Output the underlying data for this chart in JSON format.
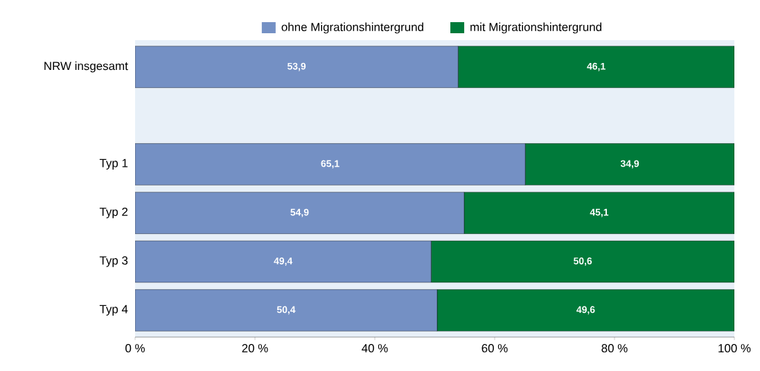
{
  "chart_data": {
    "type": "bar",
    "orientation": "horizontal",
    "stacked": true,
    "categories": [
      "NRW insgesamt",
      null,
      "Typ 1",
      "Typ 2",
      "Typ 3",
      "Typ 4"
    ],
    "series": [
      {
        "name": "ohne Migrationshintergrund",
        "color": "#7490c4",
        "values": [
          53.9,
          null,
          65.1,
          54.9,
          49.4,
          50.4
        ],
        "value_labels": [
          "53,9",
          null,
          "65,1",
          "54,9",
          "49,4",
          "50,4"
        ]
      },
      {
        "name": "mit Migrationshintergrund",
        "color": "#007a3a",
        "values": [
          46.1,
          null,
          34.9,
          45.1,
          50.6,
          49.6
        ],
        "value_labels": [
          "46,1",
          null,
          "34,9",
          "45,1",
          "50,6",
          "49,6"
        ]
      }
    ],
    "xlim": [
      0,
      100
    ],
    "xticks": [
      {
        "value": 0,
        "label": "0 %"
      },
      {
        "value": 20,
        "label": "20 %"
      },
      {
        "value": 40,
        "label": "40 %"
      },
      {
        "value": 60,
        "label": "60 %"
      },
      {
        "value": 80,
        "label": "80 %"
      },
      {
        "value": 100,
        "label": "100 %"
      }
    ],
    "legend": "top",
    "grid": false
  }
}
